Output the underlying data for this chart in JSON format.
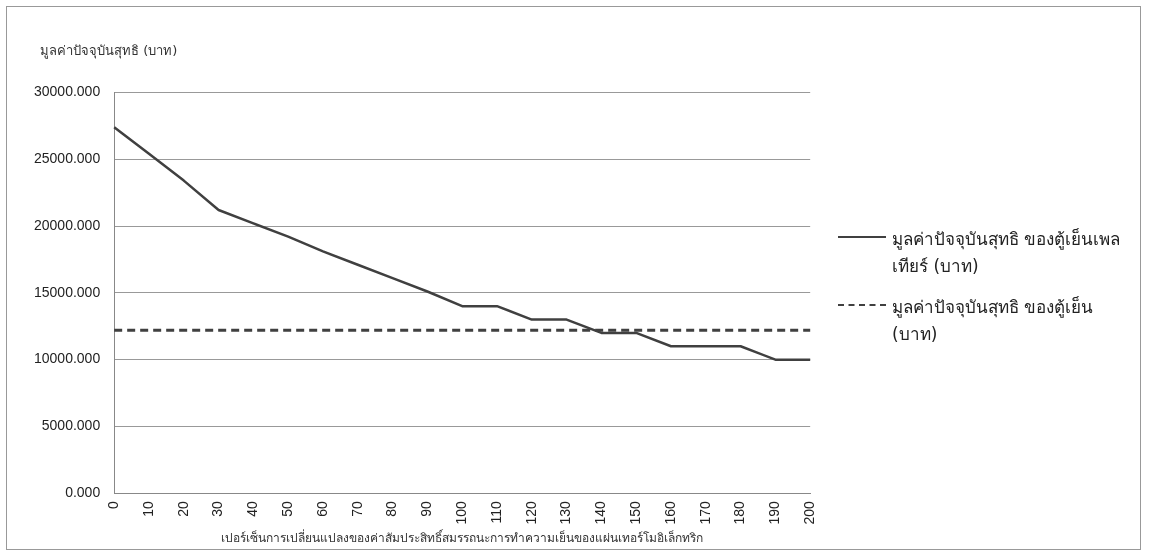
{
  "chart_data": {
    "type": "line",
    "ylabel": "มูลค่าปัจจุบันสุทธิ (บาท)",
    "xlabel": "เปอร์เซ็นการเปลี่ยนแปลงของค่าสัมประสิทธิ์สมรรถนะการทำความเย็นของแผ่นเทอร์โมอิเล็กทริก",
    "categories": [
      "0",
      "10",
      "20",
      "30",
      "40",
      "50",
      "60",
      "70",
      "80",
      "90",
      "100",
      "110",
      "120",
      "130",
      "140",
      "150",
      "160",
      "170",
      "180",
      "190",
      "200"
    ],
    "series": [
      {
        "name": "มูลค่าปัจจุบันสุทธิ ของตู้เย็นเพลเทียร์ (บาท)",
        "color": "#404040",
        "line_style": "solid",
        "values": [
          27400,
          25400,
          23400,
          21200,
          20200,
          19200,
          18100,
          17100,
          16100,
          15100,
          14000,
          14000,
          13000,
          13000,
          12000,
          12000,
          11000,
          11000,
          11000,
          10000,
          10000
        ]
      },
      {
        "name": "มูลค่าปัจจุบันสุทธิ ของตู้เย็น (บาท)",
        "color": "#404040",
        "line_style": "dashed",
        "values": [
          12200,
          12200,
          12200,
          12200,
          12200,
          12200,
          12200,
          12200,
          12200,
          12200,
          12200,
          12200,
          12200,
          12200,
          12200,
          12200,
          12200,
          12200,
          12200,
          12200,
          12200
        ]
      }
    ],
    "ylim": [
      0,
      30000
    ],
    "yticks": [
      {
        "value": 0,
        "label": "0.000"
      },
      {
        "value": 5000,
        "label": "5000.000"
      },
      {
        "value": 10000,
        "label": "10000.000"
      },
      {
        "value": 15000,
        "label": "15000.000"
      },
      {
        "value": 20000,
        "label": "20000.000"
      },
      {
        "value": 25000,
        "label": "25000.000"
      },
      {
        "value": 30000,
        "label": "30000.000"
      }
    ],
    "grid": "y",
    "legend": "right",
    "marker": "none"
  }
}
